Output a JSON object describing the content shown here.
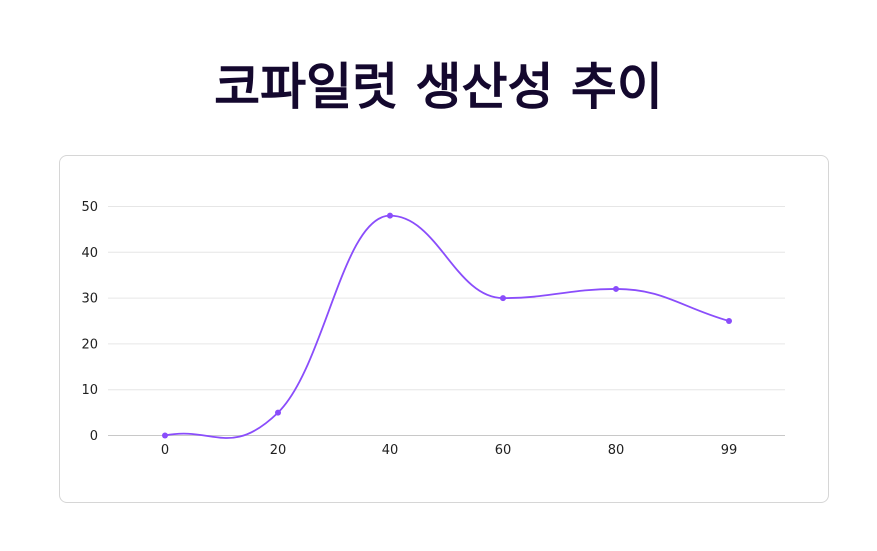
{
  "chart_data": {
    "type": "line",
    "title": "코파일럿 생산성 추이",
    "xlabel": "",
    "ylabel": "",
    "x": [
      0,
      20,
      40,
      60,
      80,
      99
    ],
    "x_tick_labels": [
      "0",
      "20",
      "40",
      "60",
      "80",
      "99"
    ],
    "series": [
      {
        "values": [
          0,
          5,
          48,
          30,
          32,
          25
        ]
      }
    ],
    "ylim": [
      0,
      50
    ],
    "y_ticks": [
      0,
      10,
      20,
      30,
      40,
      50
    ],
    "y_tick_labels": [
      "0",
      "10",
      "20",
      "30",
      "40",
      "50"
    ],
    "grid": true,
    "smooth": true,
    "markers": true,
    "colors": {
      "line": "#8a4dfb",
      "grid": "#e6e6e6",
      "axis": "#c8c8c8",
      "title": "#14082e"
    }
  }
}
